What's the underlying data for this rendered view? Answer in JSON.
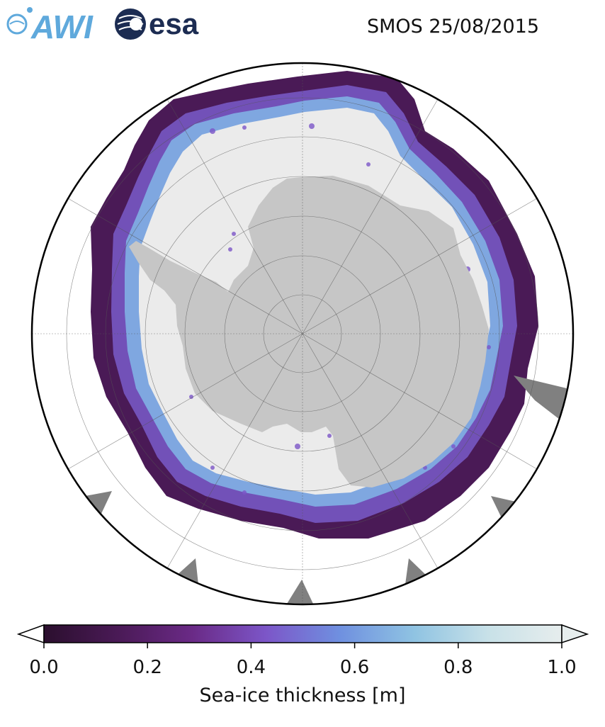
{
  "header": {
    "awi_logo_text": "AWI",
    "esa_logo_text": "esa",
    "title": "SMOS 25/08/2015"
  },
  "map": {
    "projection": "south-polar-stereographic",
    "land_color": "#c6c6c6",
    "ocean_color": "#ffffff",
    "pack_ice_color": "#ebebeb",
    "missing_data_color": "#808080",
    "gridlines": true
  },
  "colorbar": {
    "label": "Sea-ice thickness [m]",
    "min": 0.0,
    "max": 1.0,
    "extend": "both",
    "ticks": [
      "0.0",
      "0.2",
      "0.4",
      "0.6",
      "0.8",
      "1.0"
    ],
    "colormap": [
      "#2b0f2e",
      "#4a1a56",
      "#6a2a86",
      "#7c56c8",
      "#6f90e0",
      "#8fc3e2",
      "#c8e1e8",
      "#e6eded"
    ]
  }
}
